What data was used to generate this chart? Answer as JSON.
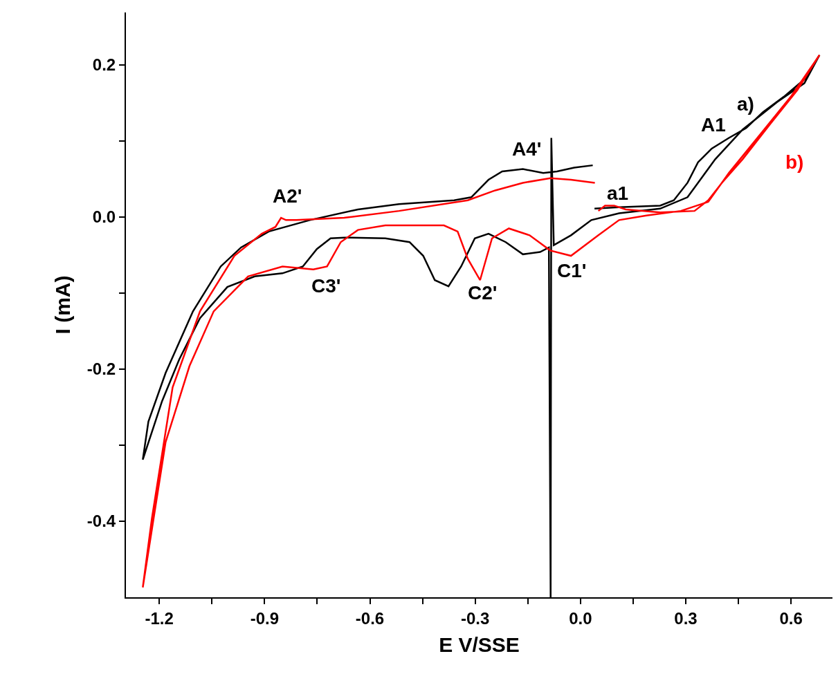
{
  "chart_data": {
    "type": "line",
    "xlabel": "E V/SSE",
    "ylabel": "I (mA)",
    "xlim": [
      -1.295,
      0.718
    ],
    "ylim": [
      -0.5,
      0.269
    ],
    "xticks": [
      {
        "value": -1.2,
        "label": "-1.2"
      },
      {
        "value": -1.05,
        "label": null
      },
      {
        "value": -0.9,
        "label": "-0.9"
      },
      {
        "value": -0.75,
        "label": null
      },
      {
        "value": -0.6,
        "label": "-0.6"
      },
      {
        "value": -0.45,
        "label": null
      },
      {
        "value": -0.3,
        "label": "-0.3"
      },
      {
        "value": -0.15,
        "label": null
      },
      {
        "value": 0,
        "label": "0.0"
      },
      {
        "value": 0.15,
        "label": null
      },
      {
        "value": 0.3,
        "label": "0.3"
      },
      {
        "value": 0.45,
        "label": null
      },
      {
        "value": 0.6,
        "label": "0.6"
      }
    ],
    "yticks": [
      {
        "value": -0.4,
        "label": "-0.4"
      },
      {
        "value": -0.3,
        "label": null
      },
      {
        "value": -0.2,
        "label": "-0.2"
      },
      {
        "value": -0.1,
        "label": null
      },
      {
        "value": 0,
        "label": "0.0"
      },
      {
        "value": 0.1,
        "label": null
      },
      {
        "value": 0.2,
        "label": "0.2"
      }
    ],
    "legend": false,
    "marker": "none",
    "line_style": "solid",
    "series": [
      {
        "name": "a)",
        "color": "#000000",
        "x": [
          0.04,
          0.11,
          0.227,
          0.266,
          0.305,
          0.335,
          0.374,
          0.423,
          0.472,
          0.52,
          0.579,
          0.638,
          0.681,
          0.638,
          0.56,
          0.462,
          0.384,
          0.305,
          0.227,
          0.11,
          0.031,
          -0.027,
          -0.076,
          -0.083,
          -0.085,
          -0.09,
          -0.115,
          -0.164,
          -0.213,
          -0.262,
          -0.301,
          -0.34,
          -0.376,
          -0.415,
          -0.448,
          -0.487,
          -0.556,
          -0.673,
          -0.712,
          -0.751,
          -0.791,
          -0.849,
          -0.928,
          -1.006,
          -1.084,
          -1.143,
          -1.192,
          -1.247,
          -1.231,
          -1.182,
          -1.104,
          -1.025,
          -0.967,
          -0.888,
          -0.771,
          -0.634,
          -0.517,
          -0.36,
          -0.311,
          -0.262,
          -0.223,
          -0.164,
          -0.106,
          -0.067,
          -0.018,
          0.035
        ],
        "values": [
          0.011,
          0.013,
          0.015,
          0.022,
          0.045,
          0.072,
          0.09,
          0.104,
          0.117,
          0.138,
          0.158,
          0.181,
          0.213,
          0.176,
          0.151,
          0.115,
          0.076,
          0.026,
          0.011,
          0.005,
          -0.004,
          -0.024,
          -0.037,
          0.104,
          -0.5,
          -0.04,
          -0.046,
          -0.049,
          -0.033,
          -0.022,
          -0.028,
          -0.065,
          -0.091,
          -0.083,
          -0.051,
          -0.033,
          -0.028,
          -0.027,
          -0.028,
          -0.042,
          -0.065,
          -0.074,
          -0.078,
          -0.092,
          -0.133,
          -0.187,
          -0.242,
          -0.319,
          -0.269,
          -0.205,
          -0.124,
          -0.065,
          -0.04,
          -0.019,
          -0.004,
          0.01,
          0.017,
          0.022,
          0.026,
          0.049,
          0.06,
          0.063,
          0.058,
          0.06,
          0.065,
          0.068
        ]
      },
      {
        "name": "b)",
        "color": "#ff0000",
        "x": [
          0.051,
          0.07,
          0.096,
          0.129,
          0.227,
          0.325,
          0.364,
          0.403,
          0.462,
          0.54,
          0.618,
          0.681,
          0.599,
          0.52,
          0.423,
          0.364,
          0.286,
          0.188,
          0.11,
          0.051,
          -0.027,
          -0.086,
          -0.145,
          -0.204,
          -0.252,
          -0.286,
          -0.321,
          -0.35,
          -0.389,
          -0.556,
          -0.634,
          -0.683,
          -0.722,
          -0.761,
          -0.849,
          -0.947,
          -1.045,
          -1.114,
          -1.182,
          -1.247,
          -1.221,
          -1.162,
          -1.084,
          -0.986,
          -0.908,
          -0.869,
          -0.853,
          -0.839,
          -0.81,
          -0.673,
          -0.517,
          -0.321,
          -0.243,
          -0.164,
          -0.086,
          -0.027,
          0.041
        ],
        "values": [
          0.008,
          0.015,
          0.015,
          0.01,
          0.006,
          0.008,
          0.022,
          0.045,
          0.076,
          0.122,
          0.167,
          0.213,
          0.158,
          0.113,
          0.058,
          0.02,
          0.008,
          0.002,
          -0.004,
          -0.024,
          -0.051,
          -0.044,
          -0.024,
          -0.015,
          -0.028,
          -0.083,
          -0.055,
          -0.019,
          -0.011,
          -0.011,
          -0.017,
          -0.033,
          -0.065,
          -0.069,
          -0.065,
          -0.078,
          -0.124,
          -0.196,
          -0.296,
          -0.487,
          -0.396,
          -0.224,
          -0.124,
          -0.051,
          -0.022,
          -0.013,
          -0.001,
          -0.004,
          -0.004,
          -0.001,
          0.008,
          0.022,
          0.035,
          0.045,
          0.051,
          0.049,
          0.045
        ]
      }
    ],
    "annotations": [
      "A1",
      "A4'",
      "A2'",
      "a1",
      "C3'",
      "C2'",
      "C1'"
    ]
  }
}
